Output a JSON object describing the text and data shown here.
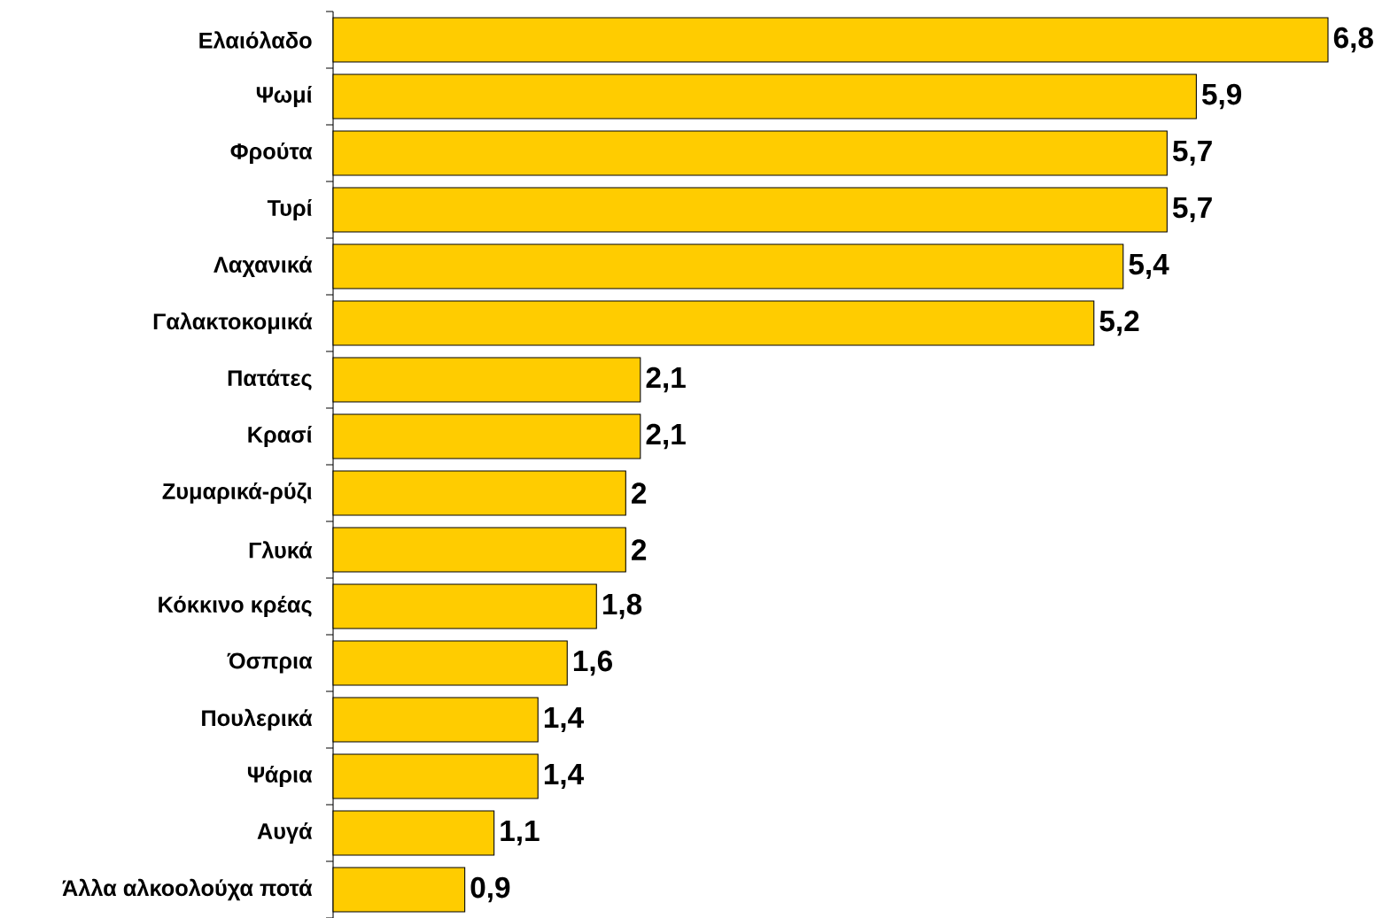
{
  "chart_data": {
    "type": "bar",
    "orientation": "horizontal",
    "color": "#ffcc00",
    "categories": [
      "Ελαιόλαδο",
      "Ψωμί",
      "Φρούτα",
      "Τυρί",
      "Λαχανικά",
      "Γαλακτοκομικά",
      "Πατάτες",
      "Κρασί",
      "Ζυμαρικά-ρύζι",
      "Γλυκά",
      "Κόκκινο κρέας",
      "Όσπρια",
      "Πουλερικά",
      "Ψάρια",
      "Αυγά",
      "Άλλα αλκοολούχα ποτά"
    ],
    "values": [
      6.8,
      5.9,
      5.7,
      5.7,
      5.4,
      5.2,
      2.1,
      2.1,
      2,
      2,
      1.8,
      1.6,
      1.4,
      1.4,
      1.1,
      0.9
    ],
    "value_labels": [
      "6,8",
      "5,9",
      "5,7",
      "5,7",
      "5,4",
      "5,2",
      "2,1",
      "2,1",
      "2",
      "2",
      "1,8",
      "1,6",
      "1,4",
      "1,4",
      "1,1",
      "0,9"
    ]
  }
}
